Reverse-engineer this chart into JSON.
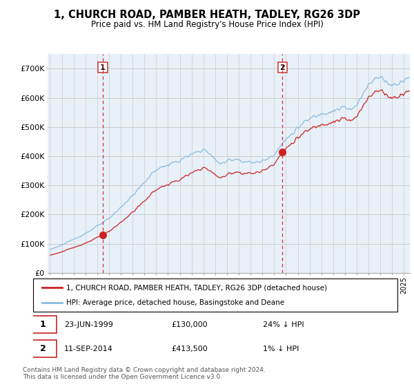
{
  "title": "1, CHURCH ROAD, PAMBER HEATH, TADLEY, RG26 3DP",
  "subtitle": "Price paid vs. HM Land Registry's House Price Index (HPI)",
  "legend_line1": "1, CHURCH ROAD, PAMBER HEATH, TADLEY, RG26 3DP (detached house)",
  "legend_line2": "HPI: Average price, detached house, Basingstoke and Deane",
  "footnote": "Contains HM Land Registry data © Crown copyright and database right 2024.\nThis data is licensed under the Open Government Licence v3.0.",
  "sale1_date": "23-JUN-1999",
  "sale1_price": 130000,
  "sale1_label": "24% ↓ HPI",
  "sale2_date": "11-SEP-2014",
  "sale2_price": 413500,
  "sale2_label": "1% ↓ HPI",
  "hpi_color": "#88BBDD",
  "price_color": "#CC2222",
  "vline_color": "#CC3333",
  "grid_color": "#CCCCCC",
  "chart_bg": "#E8F0F8",
  "background_color": "#FFFFFF",
  "ylim": [
    0,
    750000
  ],
  "yticks": [
    0,
    100000,
    200000,
    300000,
    400000,
    500000,
    600000,
    700000
  ],
  "ytick_labels": [
    "£0",
    "£100K",
    "£200K",
    "£300K",
    "£400K",
    "£500K",
    "£600K",
    "£700K"
  ],
  "sale1_year_f": 1999.47,
  "sale2_year_f": 2014.71
}
